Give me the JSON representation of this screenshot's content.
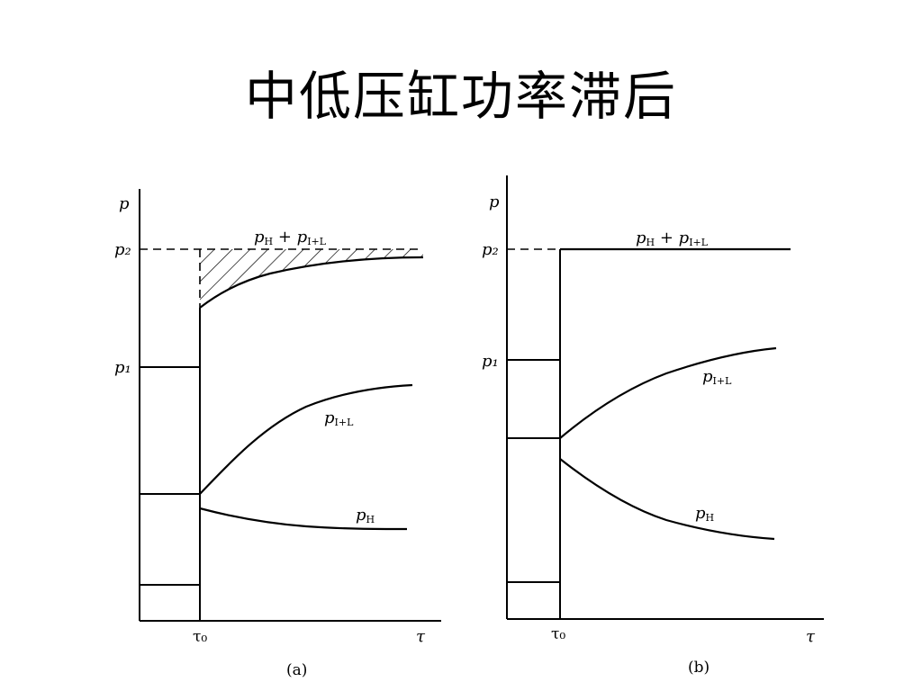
{
  "slide": {
    "title": "中低压缸功率滞后"
  },
  "diagram_a": {
    "caption": "(a)",
    "y_axis_label": "p",
    "x_axis_label": "τ",
    "tick_p2": "p₂",
    "tick_p1": "p₁",
    "tick_t0": "τ₀",
    "curve_sum_main": "p",
    "curve_sum_sub": "H",
    "curve_sum_plus": " + p",
    "curve_sum_sub2": "I+L",
    "curve_il_main": "p",
    "curve_il_sub": "I+L",
    "curve_h_main": "p",
    "curve_h_sub": "H"
  },
  "diagram_b": {
    "caption": "(b)",
    "y_axis_label": "p",
    "x_axis_label": "τ",
    "tick_p2": "p₂",
    "tick_p1": "p₁",
    "tick_t0": "τ₀",
    "curve_sum_main": "p",
    "curve_sum_sub": "H",
    "curve_sum_plus": " + p",
    "curve_sum_sub2": "I+L",
    "curve_il_main": "p",
    "curve_il_sub": "I+L",
    "curve_h_main": "p",
    "curve_h_sub": "H"
  }
}
